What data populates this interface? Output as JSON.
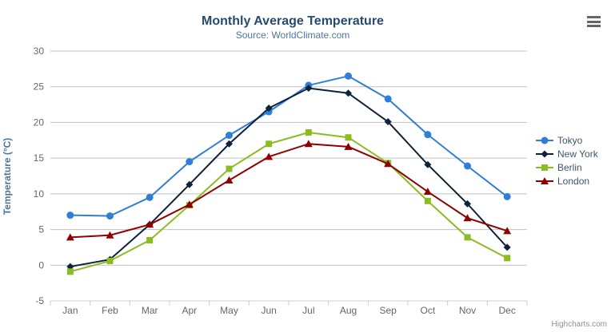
{
  "header": {
    "title": "Monthly Average Temperature",
    "subtitle": "Source: WorldClimate.com"
  },
  "credits": {
    "label": "Highcharts.com"
  },
  "menu": {
    "icon": "hamburger-menu-icon"
  },
  "colors": {
    "title": "#274b6d",
    "subtitle": "#4d759e",
    "axis_title": "#4d759e",
    "tick_label": "#666666",
    "grid_line": "#C0C0C0",
    "axis_line": "#C0D0E0",
    "legend_text": "#3E576F",
    "credits_text": "#909090"
  },
  "chart_data": {
    "type": "line",
    "title": "Monthly Average Temperature",
    "subtitle": "Source: WorldClimate.com",
    "xlabel": "",
    "ylabel": "Temperature (°C)",
    "ylim": [
      -5,
      30
    ],
    "yticks": [
      -5,
      0,
      5,
      10,
      15,
      20,
      25,
      30
    ],
    "grid": true,
    "legend_position": "right",
    "categories": [
      "Jan",
      "Feb",
      "Mar",
      "Apr",
      "May",
      "Jun",
      "Jul",
      "Aug",
      "Sep",
      "Oct",
      "Nov",
      "Dec"
    ],
    "series": [
      {
        "name": "Tokyo",
        "color": "#2f7ed8",
        "marker": "circle",
        "values": [
          7.0,
          6.9,
          9.5,
          14.5,
          18.2,
          21.5,
          25.2,
          26.5,
          23.3,
          18.3,
          13.9,
          9.6
        ]
      },
      {
        "name": "New York",
        "color": "#0d233a",
        "marker": "diamond",
        "values": [
          -0.2,
          0.8,
          5.7,
          11.3,
          17.0,
          22.0,
          24.8,
          24.1,
          20.1,
          14.1,
          8.6,
          2.5
        ]
      },
      {
        "name": "Berlin",
        "color": "#8bbc21",
        "marker": "square",
        "values": [
          -0.9,
          0.6,
          3.5,
          8.4,
          13.5,
          17.0,
          18.6,
          17.9,
          14.3,
          9.0,
          3.9,
          1.0
        ]
      },
      {
        "name": "London",
        "color": "#910000",
        "marker": "triangle",
        "values": [
          3.9,
          4.2,
          5.7,
          8.5,
          11.9,
          15.2,
          17.0,
          16.6,
          14.2,
          10.3,
          6.6,
          4.8
        ]
      }
    ]
  }
}
